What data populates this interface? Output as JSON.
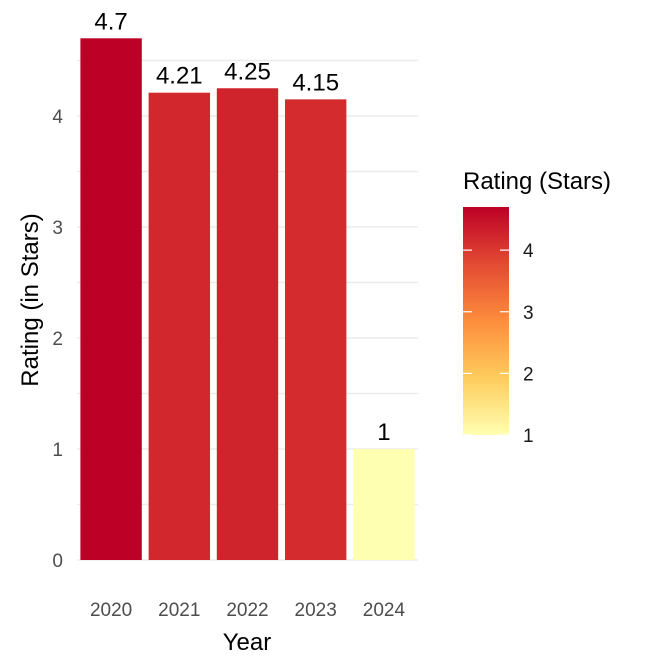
{
  "chart_data": {
    "type": "bar",
    "categories": [
      "2020",
      "2021",
      "2022",
      "2023",
      "2024"
    ],
    "values": [
      4.7,
      4.21,
      4.25,
      4.15,
      1
    ],
    "data_labels": [
      "4.7",
      "4.21",
      "4.25",
      "4.15",
      "1"
    ],
    "xlabel": "Year",
    "ylabel": "Rating (in Stars)",
    "ylim": [
      0,
      4.7
    ],
    "yticks": [
      0,
      1,
      2,
      3,
      4
    ],
    "grid": true,
    "legend": {
      "title": "Rating (Stars)",
      "placement": "right",
      "type": "colorbar",
      "ticks": [
        1,
        2,
        3,
        4
      ],
      "range": [
        1,
        4.7
      ],
      "colors": [
        "#ffffb2",
        "#fecc5c",
        "#fd8d3c",
        "#e34a33",
        "#bd0026"
      ]
    }
  }
}
